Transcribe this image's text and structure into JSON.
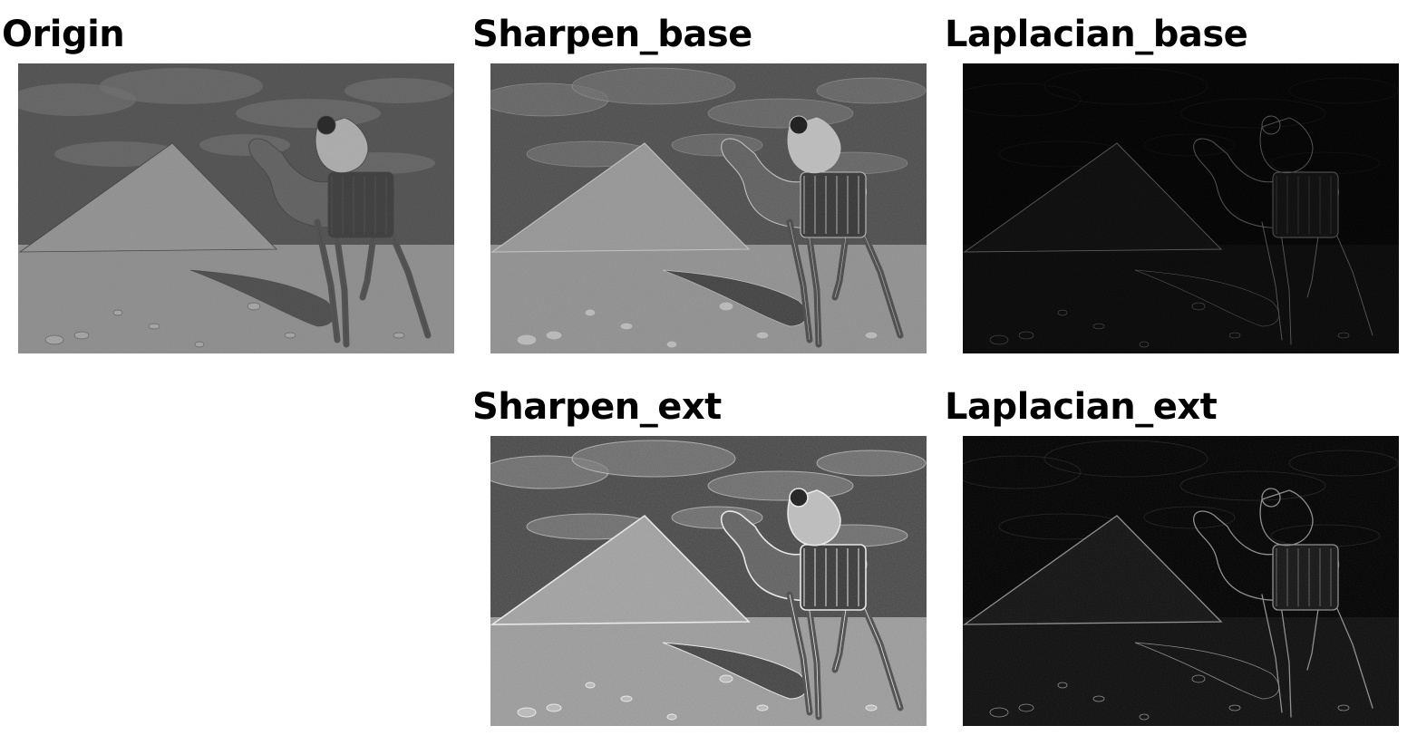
{
  "panels": [
    {
      "key": "origin",
      "title": "Origin",
      "style": "photo"
    },
    {
      "key": "sharpen_base",
      "title": "Sharpen_base",
      "style": "sharpen"
    },
    {
      "key": "laplacian_base",
      "title": "Laplacian_base",
      "style": "edges"
    },
    {
      "key": "sharpen_ext",
      "title": "Sharpen_ext",
      "style": "sharpen-strong"
    },
    {
      "key": "laplacian_ext",
      "title": "Laplacian_ext",
      "style": "edges-strong"
    }
  ],
  "image_subject": "pyramid-camel-rider-grayscale"
}
